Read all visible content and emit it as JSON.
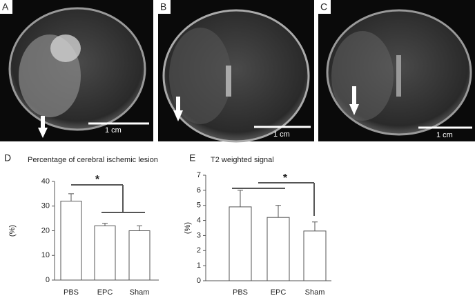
{
  "panels": [
    {
      "label": "A",
      "scale": "1 cm"
    },
    {
      "label": "B",
      "scale": "1 cm"
    },
    {
      "label": "C",
      "scale": "1 cm"
    }
  ],
  "chart_data": [
    {
      "type": "bar",
      "panel": "D",
      "title": "Percentage of cerebral ischemic lesion",
      "y_label": "(%)",
      "categories": [
        "PBS",
        "EPC",
        "Sham"
      ],
      "values": [
        32,
        22,
        20
      ],
      "errors": [
        3,
        1,
        2
      ],
      "ylim": [
        0,
        40
      ],
      "yticks": [
        0,
        10,
        20,
        30,
        40
      ],
      "annotation": "*",
      "color": "#ffffff"
    },
    {
      "type": "bar",
      "panel": "E",
      "title": "T2 weighted signal",
      "y_label": "(%)",
      "categories": [
        "PBS",
        "EPC",
        "Sham"
      ],
      "values": [
        4.9,
        4.2,
        3.3
      ],
      "errors": [
        1.1,
        0.8,
        0.6
      ],
      "ylim": [
        0,
        7
      ],
      "yticks": [
        0,
        1,
        2,
        3,
        4,
        5,
        6,
        7
      ],
      "annotation": "*",
      "color": "#ffffff"
    }
  ]
}
